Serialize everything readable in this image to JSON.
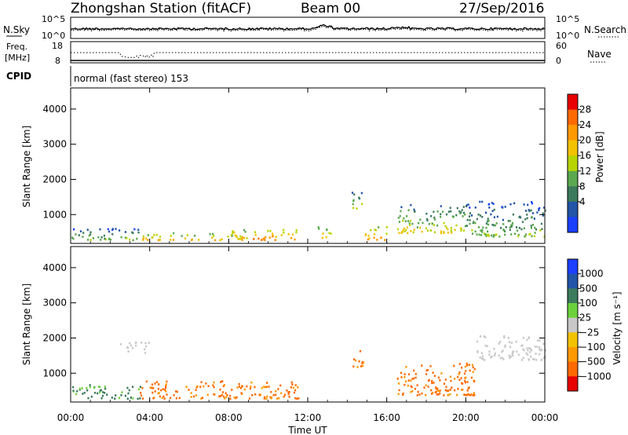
{
  "header": {
    "station_title": "Zhongshan Station (fitACF)",
    "beam": "Beam 00",
    "date": "27/Sep/2016"
  },
  "strip_nsky": {
    "left_label": "N.Sky",
    "right_label": "N.Search",
    "left_ticks": [
      "10^5",
      "10^0"
    ],
    "right_ticks": [
      "10^5",
      "10^0"
    ]
  },
  "strip_freq": {
    "left_label_line1": "Freq.",
    "left_label_line2": "[MHz]",
    "right_label": "Nave",
    "left_ticks": [
      "18",
      "8"
    ],
    "right_ticks": [
      "60",
      "0"
    ]
  },
  "cpid": {
    "label": "CPID",
    "value": "normal (fast stereo) 153"
  },
  "chart_data": [
    {
      "type": "heatmap",
      "name": "power",
      "ylabel": "Slant Range [km]",
      "y_ticks": [
        "4000",
        "3000",
        "2000",
        "1000"
      ],
      "ylim": [
        180,
        4600
      ],
      "colorbar": {
        "label": "Power [dB]",
        "ticks": [
          "28",
          "24",
          "20",
          "16",
          "12",
          "8",
          "4"
        ],
        "colors": [
          "#e80000",
          "#ff6a00",
          "#ff9900",
          "#f2c200",
          "#b8d400",
          "#5aa84f",
          "#3c7a5c",
          "#2255a8",
          "#1c3fff"
        ]
      },
      "scatter_regions_utc_hours_km": [
        {
          "t": [
            0.0,
            3.5
          ],
          "r": [
            300,
            650
          ],
          "level": 10
        },
        {
          "t": [
            3.5,
            9.0
          ],
          "r": [
            300,
            520
          ],
          "level": 18
        },
        {
          "t": [
            8.0,
            11.5
          ],
          "r": [
            300,
            600
          ],
          "level": 22
        },
        {
          "t": [
            12.5,
            13.2
          ],
          "r": [
            350,
            700
          ],
          "level": 18
        },
        {
          "t": [
            14.2,
            14.8
          ],
          "r": [
            1200,
            1700
          ],
          "level": 12
        },
        {
          "t": [
            14.8,
            16.0
          ],
          "r": [
            300,
            700
          ],
          "level": 20
        },
        {
          "t": [
            16.5,
            20.0
          ],
          "r": [
            500,
            1300
          ],
          "level": 14
        },
        {
          "t": [
            20.0,
            24.0
          ],
          "r": [
            400,
            1400
          ],
          "level": 10
        }
      ]
    },
    {
      "type": "heatmap",
      "name": "velocity",
      "ylabel": "Slant Range [km]",
      "y_ticks": [
        "4000",
        "3000",
        "2000",
        "1000"
      ],
      "ylim": [
        180,
        4600
      ],
      "colorbar": {
        "label": "Velocity [m s⁻¹]",
        "ticks": [
          "1000",
          "500",
          "100",
          "25",
          "−25",
          "−100",
          "−500",
          "−1000"
        ],
        "colors": [
          "#1c3fff",
          "#2255a8",
          "#3c7a5c",
          "#6cd23c",
          "#c8c8c8",
          "#f2c200",
          "#ff9900",
          "#ff6a00",
          "#e80000"
        ]
      },
      "scatter_regions_utc_hours_km": [
        {
          "t": [
            0.0,
            3.5
          ],
          "r": [
            300,
            700
          ],
          "level": "positive_low"
        },
        {
          "t": [
            3.5,
            11.5
          ],
          "r": [
            300,
            800
          ],
          "level": "negative"
        },
        {
          "t": [
            2.5,
            4.0
          ],
          "r": [
            1600,
            1900
          ],
          "level": "near_zero"
        },
        {
          "t": [
            14.2,
            14.8
          ],
          "r": [
            1200,
            1700
          ],
          "level": "negative"
        },
        {
          "t": [
            16.5,
            20.5
          ],
          "r": [
            400,
            1300
          ],
          "level": "negative"
        },
        {
          "t": [
            20.5,
            24.0
          ],
          "r": [
            1400,
            2100
          ],
          "level": "near_zero"
        }
      ]
    }
  ],
  "x_axis": {
    "label": "Time UT",
    "ticks": [
      "00:00",
      "04:00",
      "08:00",
      "12:00",
      "16:00",
      "20:00",
      "00:00"
    ]
  }
}
